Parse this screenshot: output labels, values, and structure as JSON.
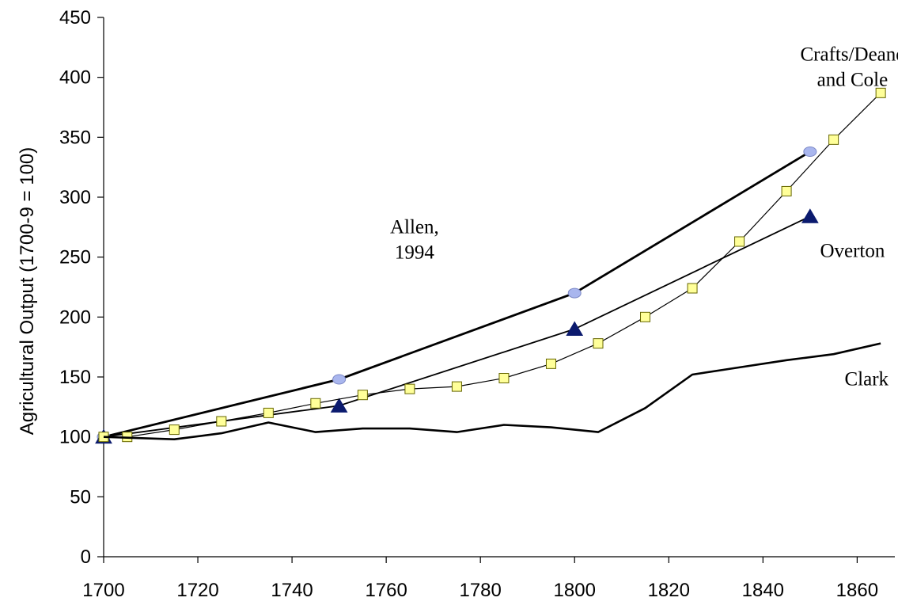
{
  "chart_data": {
    "type": "line",
    "title": "",
    "xlabel": "",
    "ylabel": "Agricultural Output (1700-9 = 100)",
    "xlim": [
      1700,
      1868
    ],
    "ylim": [
      0,
      450
    ],
    "x_ticks": [
      1700,
      1720,
      1740,
      1760,
      1780,
      1800,
      1820,
      1840,
      1860
    ],
    "y_ticks": [
      0,
      50,
      100,
      150,
      200,
      250,
      300,
      350,
      400,
      450
    ],
    "grid": false,
    "legend": "none",
    "series": [
      {
        "name": "Allen, 1994",
        "label_lines": [
          "Allen,",
          "1994"
        ],
        "marker": "circle",
        "color": "#000000",
        "marker_color": "#a9b6ee",
        "x": [
          1700,
          1750,
          1800,
          1850
        ],
        "y": [
          100,
          148,
          220,
          338
        ]
      },
      {
        "name": "Overton",
        "label_lines": [
          "Overton"
        ],
        "marker": "triangle",
        "color": "#000000",
        "marker_color": "#0b1a6e",
        "x": [
          1700,
          1750,
          1800,
          1850
        ],
        "y": [
          100,
          126,
          190,
          284
        ]
      },
      {
        "name": "Crafts/Deane and Cole",
        "label_lines": [
          "Crafts/Deane",
          "and Cole"
        ],
        "marker": "square",
        "color": "#000000",
        "marker_color": "#ffff99",
        "x": [
          1700,
          1705,
          1715,
          1725,
          1735,
          1745,
          1755,
          1765,
          1775,
          1785,
          1795,
          1805,
          1815,
          1825,
          1835,
          1845,
          1855,
          1865
        ],
        "y": [
          100,
          100,
          106,
          113,
          120,
          128,
          135,
          140,
          142,
          149,
          161,
          178,
          200,
          224,
          263,
          305,
          348,
          387
        ]
      },
      {
        "name": "Clark",
        "label_lines": [
          "Clark"
        ],
        "marker": "none",
        "color": "#000000",
        "x": [
          1700,
          1715,
          1725,
          1735,
          1745,
          1755,
          1765,
          1775,
          1785,
          1795,
          1805,
          1815,
          1825,
          1835,
          1845,
          1855,
          1865
        ],
        "y": [
          100,
          98,
          103,
          112,
          104,
          107,
          107,
          104,
          110,
          108,
          104,
          124,
          152,
          158,
          164,
          169,
          178
        ]
      }
    ]
  }
}
